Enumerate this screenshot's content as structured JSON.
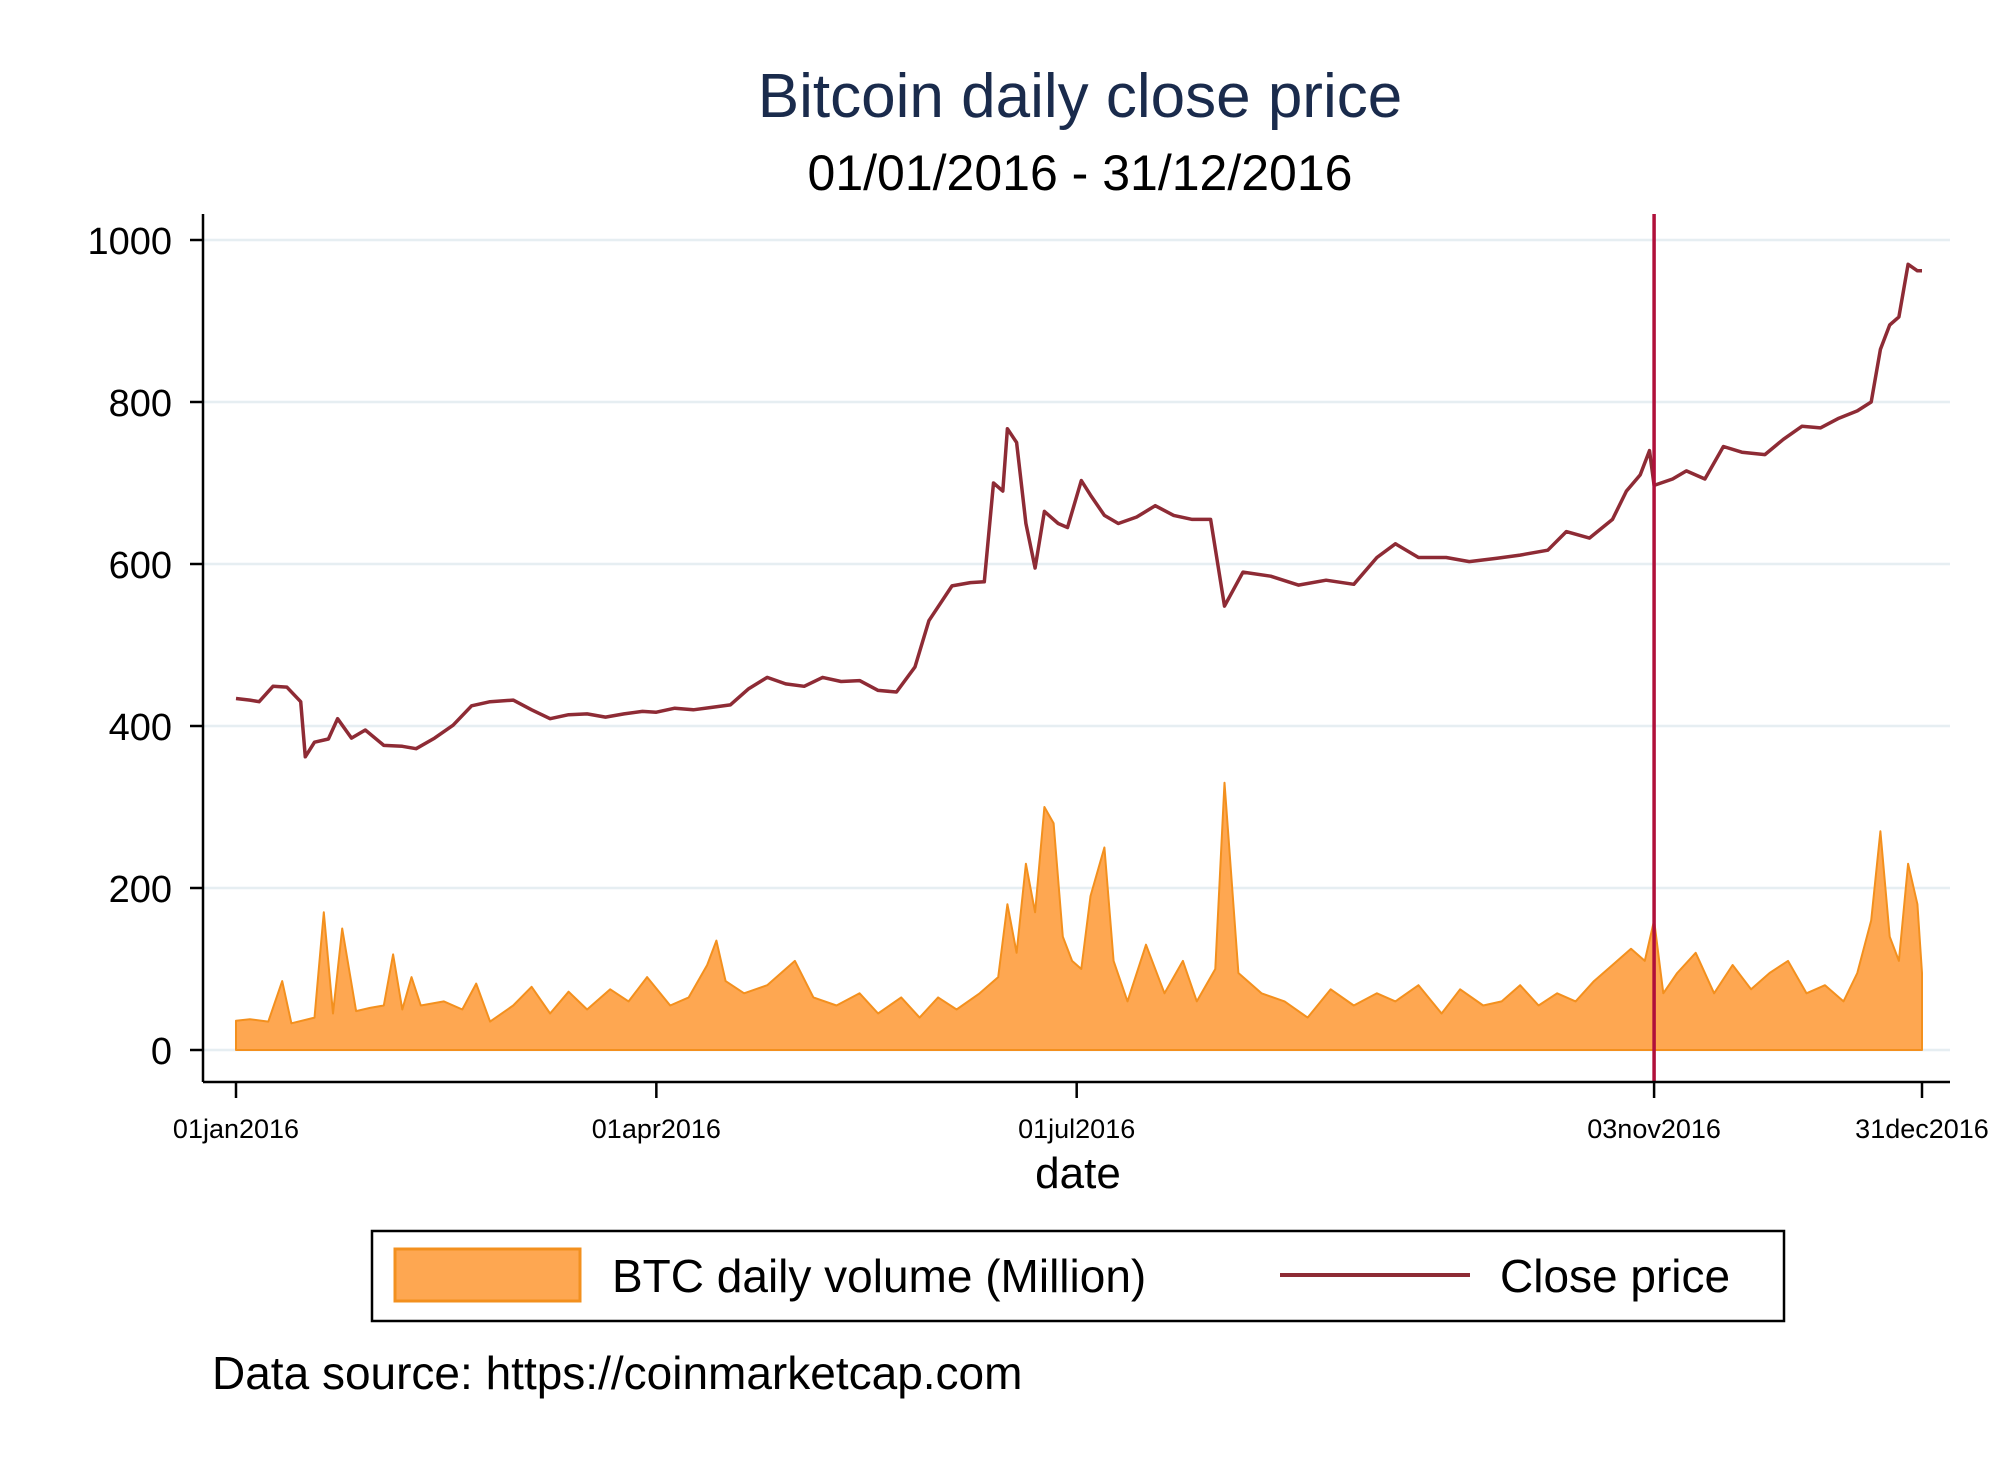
{
  "chart_data": {
    "type": "area+line",
    "title": "Bitcoin daily close price",
    "subtitle": "01/01/2016 - 31/12/2016",
    "xlabel": "date",
    "ylabel": "",
    "x_range": [
      "2016-01-01",
      "2016-12-31"
    ],
    "ylim": [
      0,
      1000
    ],
    "y_ticks": [
      0,
      200,
      400,
      600,
      800,
      1000
    ],
    "x_ticks": [
      {
        "date": "2016-01-01",
        "label": "01jan2016"
      },
      {
        "date": "2016-04-01",
        "label": "01apr2016"
      },
      {
        "date": "2016-07-01",
        "label": "01jul2016"
      },
      {
        "date": "2016-11-03",
        "label": "03nov2016"
      },
      {
        "date": "2016-12-31",
        "label": "31dec2016"
      }
    ],
    "grid": "horizontal",
    "legend_position": "bottom",
    "reference_line": {
      "date": "2016-11-03",
      "color": "#b0103a"
    },
    "colors": {
      "volume_fill": "#fea751",
      "volume_edge": "#f3901e",
      "close_line": "#8e2b35",
      "title": "#1a2b4c",
      "grid": "#e6eef2"
    },
    "series": [
      {
        "name": "BTC daily volume (Million)",
        "kind": "area",
        "points": [
          [
            "2016-01-01",
            36
          ],
          [
            "2016-01-04",
            38
          ],
          [
            "2016-01-08",
            35
          ],
          [
            "2016-01-11",
            85
          ],
          [
            "2016-01-13",
            33
          ],
          [
            "2016-01-18",
            40
          ],
          [
            "2016-01-20",
            170
          ],
          [
            "2016-01-22",
            45
          ],
          [
            "2016-01-24",
            150
          ],
          [
            "2016-01-27",
            48
          ],
          [
            "2016-01-30",
            52
          ],
          [
            "2016-02-02",
            55
          ],
          [
            "2016-02-04",
            118
          ],
          [
            "2016-02-06",
            50
          ],
          [
            "2016-02-08",
            90
          ],
          [
            "2016-02-10",
            55
          ],
          [
            "2016-02-15",
            60
          ],
          [
            "2016-02-19",
            50
          ],
          [
            "2016-02-22",
            82
          ],
          [
            "2016-02-25",
            35
          ],
          [
            "2016-03-01",
            55
          ],
          [
            "2016-03-05",
            78
          ],
          [
            "2016-03-09",
            45
          ],
          [
            "2016-03-13",
            72
          ],
          [
            "2016-03-17",
            50
          ],
          [
            "2016-03-22",
            75
          ],
          [
            "2016-03-26",
            60
          ],
          [
            "2016-03-30",
            90
          ],
          [
            "2016-04-04",
            55
          ],
          [
            "2016-04-08",
            65
          ],
          [
            "2016-04-12",
            105
          ],
          [
            "2016-04-14",
            135
          ],
          [
            "2016-04-16",
            85
          ],
          [
            "2016-04-20",
            70
          ],
          [
            "2016-04-25",
            80
          ],
          [
            "2016-05-01",
            110
          ],
          [
            "2016-05-05",
            65
          ],
          [
            "2016-05-10",
            55
          ],
          [
            "2016-05-15",
            70
          ],
          [
            "2016-05-19",
            45
          ],
          [
            "2016-05-24",
            65
          ],
          [
            "2016-05-28",
            40
          ],
          [
            "2016-06-01",
            65
          ],
          [
            "2016-06-05",
            50
          ],
          [
            "2016-06-10",
            70
          ],
          [
            "2016-06-14",
            90
          ],
          [
            "2016-06-16",
            180
          ],
          [
            "2016-06-18",
            120
          ],
          [
            "2016-06-20",
            230
          ],
          [
            "2016-06-22",
            170
          ],
          [
            "2016-06-24",
            300
          ],
          [
            "2016-06-26",
            280
          ],
          [
            "2016-06-28",
            140
          ],
          [
            "2016-06-30",
            110
          ],
          [
            "2016-07-02",
            100
          ],
          [
            "2016-07-04",
            190
          ],
          [
            "2016-07-07",
            250
          ],
          [
            "2016-07-09",
            110
          ],
          [
            "2016-07-12",
            60
          ],
          [
            "2016-07-16",
            130
          ],
          [
            "2016-07-20",
            70
          ],
          [
            "2016-07-24",
            110
          ],
          [
            "2016-07-27",
            60
          ],
          [
            "2016-07-31",
            100
          ],
          [
            "2016-08-02",
            330
          ],
          [
            "2016-08-05",
            95
          ],
          [
            "2016-08-10",
            70
          ],
          [
            "2016-08-15",
            60
          ],
          [
            "2016-08-20",
            40
          ],
          [
            "2016-08-25",
            75
          ],
          [
            "2016-08-30",
            55
          ],
          [
            "2016-09-04",
            70
          ],
          [
            "2016-09-08",
            60
          ],
          [
            "2016-09-13",
            80
          ],
          [
            "2016-09-18",
            45
          ],
          [
            "2016-09-22",
            75
          ],
          [
            "2016-09-27",
            55
          ],
          [
            "2016-10-01",
            60
          ],
          [
            "2016-10-05",
            80
          ],
          [
            "2016-10-09",
            55
          ],
          [
            "2016-10-13",
            70
          ],
          [
            "2016-10-17",
            60
          ],
          [
            "2016-10-21",
            85
          ],
          [
            "2016-10-25",
            105
          ],
          [
            "2016-10-29",
            125
          ],
          [
            "2016-11-01",
            110
          ],
          [
            "2016-11-03",
            160
          ],
          [
            "2016-11-05",
            70
          ],
          [
            "2016-11-08",
            95
          ],
          [
            "2016-11-12",
            120
          ],
          [
            "2016-11-16",
            70
          ],
          [
            "2016-11-20",
            105
          ],
          [
            "2016-11-24",
            75
          ],
          [
            "2016-11-28",
            95
          ],
          [
            "2016-12-02",
            110
          ],
          [
            "2016-12-06",
            70
          ],
          [
            "2016-12-10",
            80
          ],
          [
            "2016-12-14",
            60
          ],
          [
            "2016-12-17",
            95
          ],
          [
            "2016-12-20",
            160
          ],
          [
            "2016-12-22",
            270
          ],
          [
            "2016-12-24",
            140
          ],
          [
            "2016-12-26",
            110
          ],
          [
            "2016-12-28",
            230
          ],
          [
            "2016-12-30",
            180
          ],
          [
            "2016-12-31",
            95
          ]
        ]
      },
      {
        "name": "Close price",
        "kind": "line",
        "points": [
          [
            "2016-01-01",
            434
          ],
          [
            "2016-01-04",
            432
          ],
          [
            "2016-01-06",
            430
          ],
          [
            "2016-01-09",
            449
          ],
          [
            "2016-01-12",
            448
          ],
          [
            "2016-01-15",
            430
          ],
          [
            "2016-01-16",
            362
          ],
          [
            "2016-01-18",
            380
          ],
          [
            "2016-01-21",
            384
          ],
          [
            "2016-01-23",
            409
          ],
          [
            "2016-01-26",
            385
          ],
          [
            "2016-01-29",
            395
          ],
          [
            "2016-02-02",
            376
          ],
          [
            "2016-02-06",
            375
          ],
          [
            "2016-02-09",
            372
          ],
          [
            "2016-02-13",
            385
          ],
          [
            "2016-02-17",
            401
          ],
          [
            "2016-02-21",
            425
          ],
          [
            "2016-02-25",
            430
          ],
          [
            "2016-03-01",
            432
          ],
          [
            "2016-03-05",
            420
          ],
          [
            "2016-03-09",
            409
          ],
          [
            "2016-03-13",
            414
          ],
          [
            "2016-03-17",
            415
          ],
          [
            "2016-03-21",
            411
          ],
          [
            "2016-03-25",
            415
          ],
          [
            "2016-03-29",
            418
          ],
          [
            "2016-04-01",
            417
          ],
          [
            "2016-04-05",
            422
          ],
          [
            "2016-04-09",
            420
          ],
          [
            "2016-04-13",
            423
          ],
          [
            "2016-04-17",
            426
          ],
          [
            "2016-04-21",
            446
          ],
          [
            "2016-04-25",
            460
          ],
          [
            "2016-04-29",
            452
          ],
          [
            "2016-05-03",
            449
          ],
          [
            "2016-05-07",
            460
          ],
          [
            "2016-05-11",
            455
          ],
          [
            "2016-05-15",
            456
          ],
          [
            "2016-05-19",
            444
          ],
          [
            "2016-05-23",
            442
          ],
          [
            "2016-05-27",
            473
          ],
          [
            "2016-05-30",
            530
          ],
          [
            "2016-06-04",
            573
          ],
          [
            "2016-06-08",
            577
          ],
          [
            "2016-06-11",
            578
          ],
          [
            "2016-06-13",
            700
          ],
          [
            "2016-06-15",
            690
          ],
          [
            "2016-06-16",
            767
          ],
          [
            "2016-06-18",
            750
          ],
          [
            "2016-06-20",
            650
          ],
          [
            "2016-06-22",
            595
          ],
          [
            "2016-06-24",
            665
          ],
          [
            "2016-06-27",
            650
          ],
          [
            "2016-06-29",
            645
          ],
          [
            "2016-07-02",
            703
          ],
          [
            "2016-07-04",
            685
          ],
          [
            "2016-07-07",
            660
          ],
          [
            "2016-07-10",
            650
          ],
          [
            "2016-07-14",
            658
          ],
          [
            "2016-07-18",
            672
          ],
          [
            "2016-07-22",
            660
          ],
          [
            "2016-07-26",
            655
          ],
          [
            "2016-07-30",
            655
          ],
          [
            "2016-08-02",
            548
          ],
          [
            "2016-08-06",
            590
          ],
          [
            "2016-08-12",
            585
          ],
          [
            "2016-08-18",
            574
          ],
          [
            "2016-08-24",
            580
          ],
          [
            "2016-08-30",
            575
          ],
          [
            "2016-09-04",
            608
          ],
          [
            "2016-09-08",
            625
          ],
          [
            "2016-09-13",
            608
          ],
          [
            "2016-09-19",
            608
          ],
          [
            "2016-09-24",
            603
          ],
          [
            "2016-09-30",
            607
          ],
          [
            "2016-10-05",
            611
          ],
          [
            "2016-10-11",
            617
          ],
          [
            "2016-10-15",
            640
          ],
          [
            "2016-10-20",
            632
          ],
          [
            "2016-10-25",
            655
          ],
          [
            "2016-10-28",
            690
          ],
          [
            "2016-10-31",
            710
          ],
          [
            "2016-11-02",
            740
          ],
          [
            "2016-11-03",
            697
          ],
          [
            "2016-11-07",
            705
          ],
          [
            "2016-11-10",
            715
          ],
          [
            "2016-11-14",
            705
          ],
          [
            "2016-11-18",
            745
          ],
          [
            "2016-11-22",
            738
          ],
          [
            "2016-11-27",
            735
          ],
          [
            "2016-12-01",
            754
          ],
          [
            "2016-12-05",
            770
          ],
          [
            "2016-12-09",
            768
          ],
          [
            "2016-12-13",
            780
          ],
          [
            "2016-12-17",
            789
          ],
          [
            "2016-12-20",
            800
          ],
          [
            "2016-12-22",
            865
          ],
          [
            "2016-12-24",
            895
          ],
          [
            "2016-12-26",
            905
          ],
          [
            "2016-12-28",
            970
          ],
          [
            "2016-12-30",
            962
          ],
          [
            "2016-12-31",
            962
          ]
        ]
      }
    ],
    "footnote": "Data source: https://coinmarketcap.com"
  }
}
